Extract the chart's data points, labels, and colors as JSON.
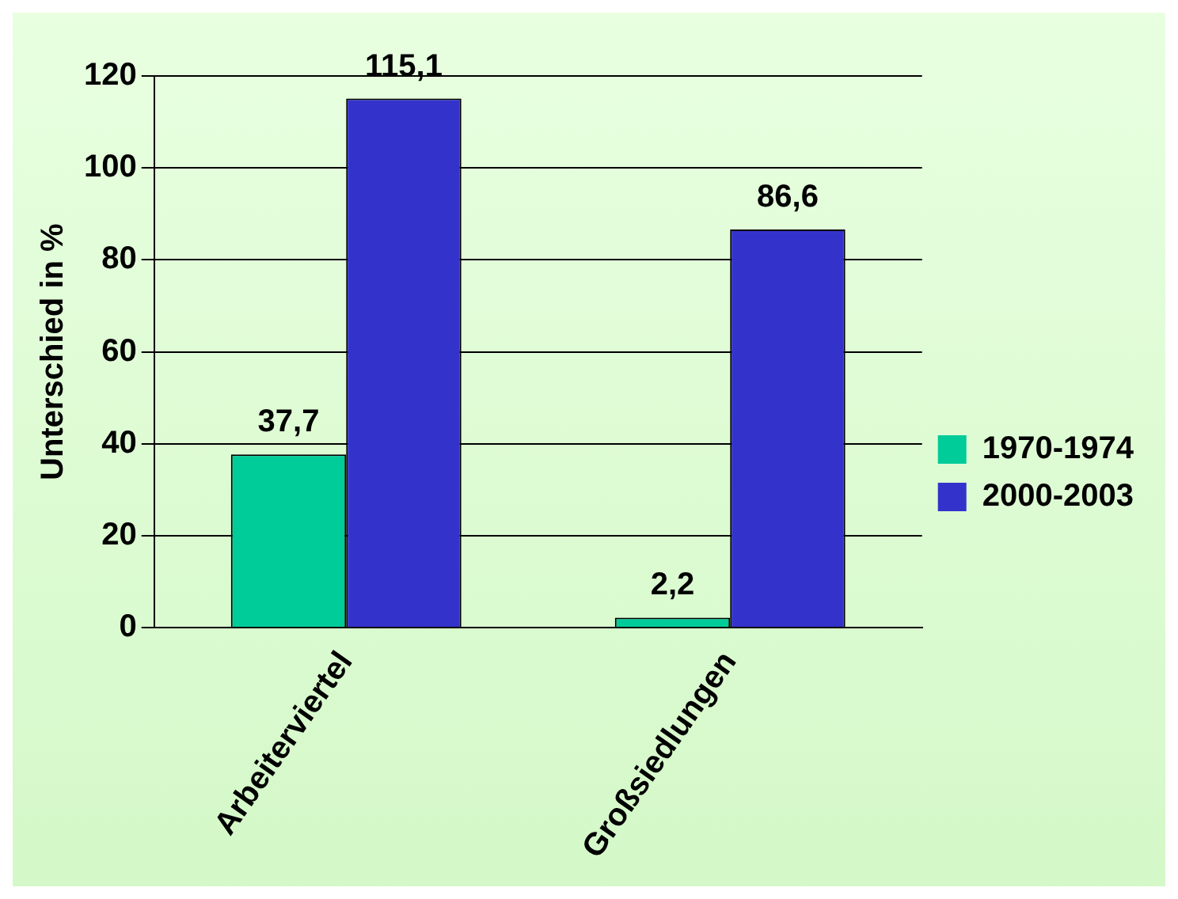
{
  "chart_data": {
    "type": "bar",
    "ylabel": "Unterschied in %",
    "categories": [
      "Arbeiterviertel",
      "Großsiedlungen"
    ],
    "series": [
      {
        "name": "1970-1974",
        "color": "#00cc99",
        "values": [
          37.7,
          2.2
        ],
        "value_labels": [
          "37,7",
          "2,2"
        ]
      },
      {
        "name": "2000-2003",
        "color": "#3333cc",
        "values": [
          115.1,
          86.6
        ],
        "value_labels": [
          "115,1",
          "86,6"
        ]
      }
    ],
    "ylim": [
      0,
      120
    ],
    "yticks": [
      0,
      20,
      40,
      60,
      80,
      100,
      120
    ],
    "grid": "y",
    "legend": "right"
  }
}
